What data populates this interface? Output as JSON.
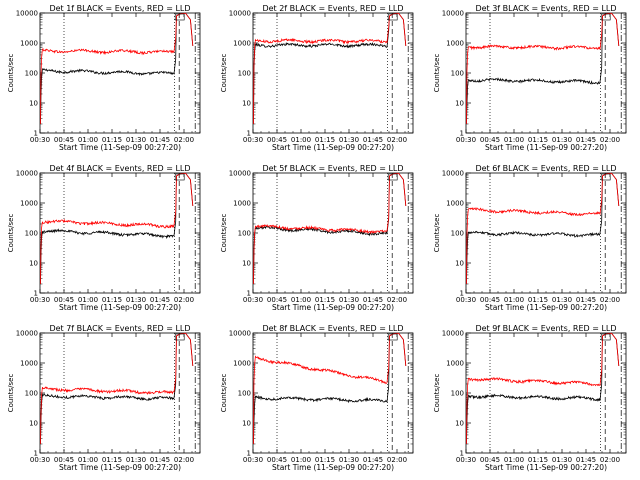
{
  "figure": {
    "x_axis_label": "Start Time (11-Sep-09 00:27:20)",
    "y_axis_label": "Counts/sec",
    "x_tick_labels": [
      "00:30",
      "00:45",
      "01:00",
      "01:15",
      "01:30",
      "01:45",
      "02:00"
    ],
    "y_tick_labels": [
      "1",
      "10",
      "100",
      "1000",
      "10000"
    ],
    "colors": {
      "events": "#000000",
      "lld": "#ff0000",
      "axes": "#000000"
    }
  },
  "chart_data": [
    {
      "type": "line",
      "title": "Det 1f BLACK = Events, RED = LLD",
      "x_range_min": [
        30,
        130
      ],
      "y_log_range": [
        1,
        10000
      ],
      "series": [
        {
          "values_early": 120,
          "values_late": 95,
          "end_time": 114
        },
        {
          "values_early": 550,
          "values_late": 500,
          "end_time": 114
        }
      ],
      "vlines_dotted": [
        45,
        114
      ],
      "vlines_dashed": [
        117
      ],
      "vlines_dashdot": [
        127
      ]
    },
    {
      "type": "line",
      "title": "Det 2f BLACK = Events, RED = LLD",
      "x_range_min": [
        30,
        130
      ],
      "y_log_range": [
        1,
        10000
      ],
      "series": [
        {
          "values_early": 850,
          "values_late": 850,
          "end_time": 114
        },
        {
          "values_early": 1200,
          "values_late": 1150,
          "end_time": 114
        }
      ],
      "vlines_dotted": [
        45,
        114
      ],
      "vlines_dashed": [
        117
      ],
      "vlines_dashdot": [
        127
      ]
    },
    {
      "type": "line",
      "title": "Det 3f BLACK = Events, RED = LLD",
      "x_range_min": [
        30,
        130
      ],
      "y_log_range": [
        1,
        10000
      ],
      "series": [
        {
          "values_early": 60,
          "values_late": 50,
          "end_time": 114
        },
        {
          "values_early": 750,
          "values_late": 700,
          "end_time": 114
        }
      ],
      "vlines_dotted": [
        45,
        114
      ],
      "vlines_dashed": [
        117
      ],
      "vlines_dashdot": [
        127
      ]
    },
    {
      "type": "line",
      "title": "Det 4f BLACK = Events, RED = LLD",
      "x_range_min": [
        30,
        130
      ],
      "y_log_range": [
        1,
        10000
      ],
      "series": [
        {
          "values_early": 120,
          "values_late": 80,
          "end_time": 114
        },
        {
          "values_early": 250,
          "values_late": 170,
          "end_time": 114
        }
      ],
      "vlines_dotted": [
        45,
        114
      ],
      "vlines_dashed": [
        117
      ],
      "vlines_dashdot": [
        127
      ]
    },
    {
      "type": "line",
      "title": "Det 5f BLACK = Events, RED = LLD",
      "x_range_min": [
        30,
        130
      ],
      "y_log_range": [
        1,
        10000
      ],
      "series": [
        {
          "values_early": 150,
          "values_late": 95,
          "end_time": 114
        },
        {
          "values_early": 170,
          "values_late": 110,
          "end_time": 114
        }
      ],
      "vlines_dotted": [
        45,
        114
      ],
      "vlines_dashed": [
        117
      ],
      "vlines_dashdot": [
        127
      ]
    },
    {
      "type": "line",
      "title": "Det 6f BLACK = Events, RED = LLD",
      "x_range_min": [
        30,
        130
      ],
      "y_log_range": [
        1,
        10000
      ],
      "series": [
        {
          "values_early": 100,
          "values_late": 85,
          "end_time": 114
        },
        {
          "values_early": 600,
          "values_late": 420,
          "end_time": 114
        }
      ],
      "vlines_dotted": [
        45,
        114
      ],
      "vlines_dashed": [
        117
      ],
      "vlines_dashdot": [
        127
      ]
    },
    {
      "type": "line",
      "title": "Det 7f BLACK = Events, RED = LLD",
      "x_range_min": [
        30,
        130
      ],
      "y_log_range": [
        1,
        10000
      ],
      "series": [
        {
          "values_early": 80,
          "values_late": 65,
          "end_time": 114
        },
        {
          "values_early": 140,
          "values_late": 100,
          "end_time": 114
        }
      ],
      "vlines_dotted": [
        45,
        114
      ],
      "vlines_dashed": [
        117
      ],
      "vlines_dashdot": [
        127
      ]
    },
    {
      "type": "line",
      "title": "Det 8f BLACK = Events, RED = LLD",
      "x_range_min": [
        30,
        130
      ],
      "y_log_range": [
        1,
        10000
      ],
      "series": [
        {
          "values_early": 70,
          "values_late": 55,
          "end_time": 114
        },
        {
          "values_early": 1500,
          "values_late": 230,
          "end_time": 114
        }
      ],
      "vlines_dotted": [
        45,
        114
      ],
      "vlines_dashed": [
        117
      ],
      "vlines_dashdot": [
        127
      ]
    },
    {
      "type": "line",
      "title": "Det 9f BLACK = Events, RED = LLD",
      "x_range_min": [
        30,
        130
      ],
      "y_log_range": [
        1,
        10000
      ],
      "series": [
        {
          "values_early": 80,
          "values_late": 65,
          "end_time": 114
        },
        {
          "values_early": 300,
          "values_late": 200,
          "end_time": 114
        }
      ],
      "vlines_dotted": [
        45,
        114
      ],
      "vlines_dashed": [
        117
      ],
      "vlines_dashdot": [
        127
      ]
    }
  ]
}
